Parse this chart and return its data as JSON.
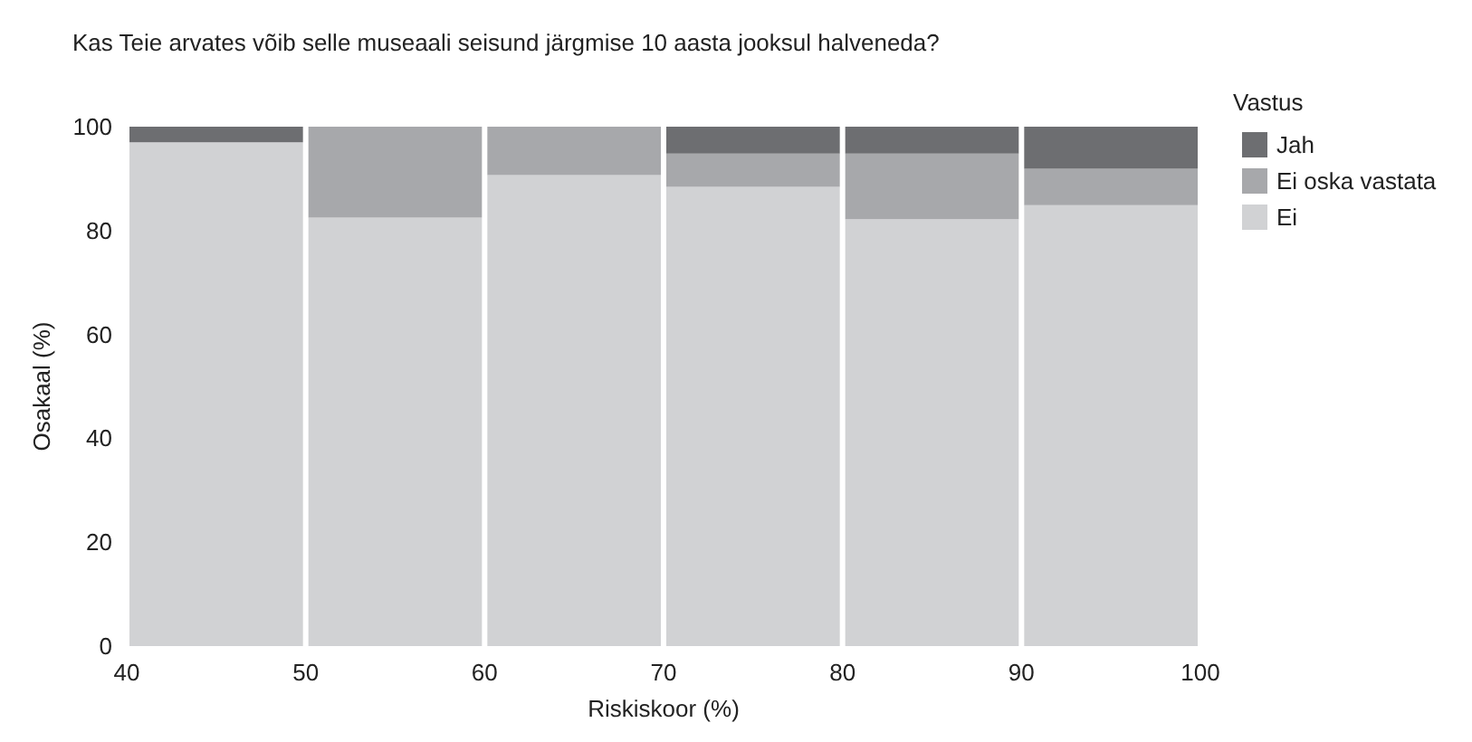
{
  "chart_data": {
    "type": "bar",
    "stacked": true,
    "title": "Kas Teie arvates võib selle museaali seisund järgmise 10 aasta jooksul halveneda?",
    "xlabel": "Riskiskoor (%)",
    "ylabel": "Osakaal (%)",
    "legend_title": "Vastus",
    "legend": "top right",
    "x": [
      45,
      55,
      65,
      75,
      85,
      95
    ],
    "series": [
      {
        "name": "Ei",
        "color": "#d1d2d4",
        "values": [
          97,
          82.5,
          90.7,
          88.4,
          82.2,
          84.9
        ]
      },
      {
        "name": "Ei oska vastata",
        "color": "#a7a8ab",
        "values": [
          0,
          17.5,
          9.3,
          6.4,
          12.6,
          7
        ]
      },
      {
        "name": "Jah",
        "color": "#6d6e71",
        "values": [
          3,
          0,
          0,
          5.2,
          5.2,
          8.1
        ]
      }
    ],
    "xlim": [
      40,
      100
    ],
    "xticks": [
      40,
      50,
      60,
      70,
      80,
      90,
      100
    ],
    "ylim": [
      0,
      100
    ],
    "yticks": [
      0,
      20,
      40,
      60,
      80,
      100
    ]
  }
}
